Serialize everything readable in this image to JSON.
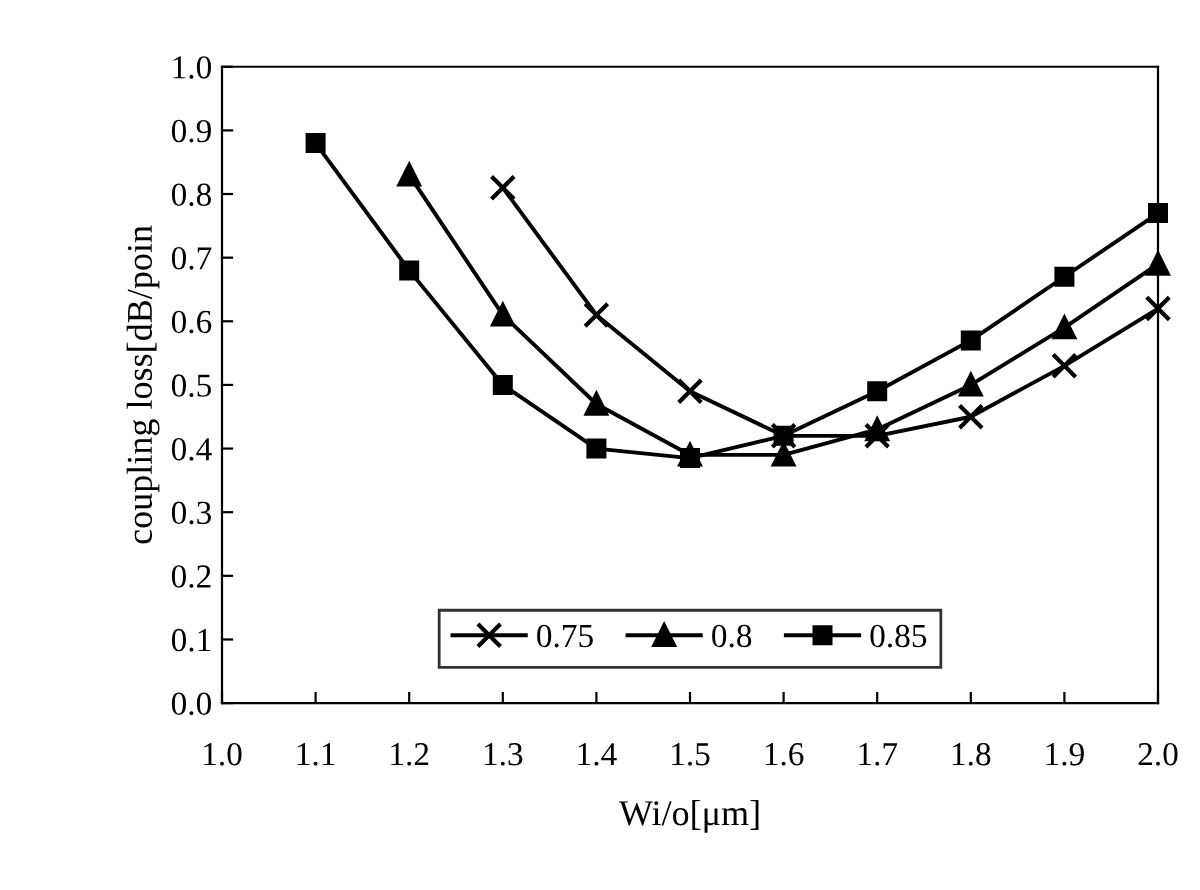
{
  "chart_data": {
    "type": "line",
    "xlabel": "Wi/o[μm]",
    "ylabel": "coupling loss[dB/poin",
    "xlim": [
      1.0,
      2.0
    ],
    "xticks": [
      {
        "value": 1,
        "label": "1.0"
      },
      1.1,
      1.2,
      1.3,
      1.4,
      1.5,
      1.6,
      1.7,
      1.8,
      1.9,
      {
        "value": 2,
        "label": "2.0"
      }
    ],
    "ylim": [
      0.0,
      1.0
    ],
    "yticks": [
      {
        "value": 0,
        "label": "0.0"
      },
      0.1,
      0.2,
      0.3,
      0.4,
      0.5,
      0.6,
      0.7,
      0.8,
      0.9,
      {
        "value": 1,
        "label": "1.0"
      }
    ],
    "grid": false,
    "legend": "bottom",
    "line_style": "solid",
    "series": [
      {
        "name": "0.75",
        "color": "#000000",
        "marker": "cross",
        "x": [
          1.3,
          1.4,
          1.5,
          1.6,
          1.7,
          1.8,
          1.9,
          2.0
        ],
        "values": [
          0.81,
          0.61,
          0.49,
          0.42,
          0.42,
          0.45,
          0.53,
          0.62
        ]
      },
      {
        "name": "0.8",
        "color": "#000000",
        "marker": "triangle",
        "x": [
          1.2,
          1.3,
          1.4,
          1.5,
          1.6,
          1.7,
          1.8,
          1.9,
          2.0
        ],
        "values": [
          0.83,
          0.61,
          0.47,
          0.39,
          0.39,
          0.43,
          0.5,
          0.59,
          0.69
        ]
      },
      {
        "name": "0.85",
        "color": "#000000",
        "marker": "square",
        "x": [
          1.1,
          1.2,
          1.3,
          1.4,
          1.5,
          1.6,
          1.7,
          1.8,
          1.9,
          2.0
        ],
        "values": [
          0.88,
          0.68,
          0.5,
          0.4,
          0.385,
          0.42,
          0.49,
          0.57,
          0.67,
          0.77
        ]
      }
    ]
  }
}
